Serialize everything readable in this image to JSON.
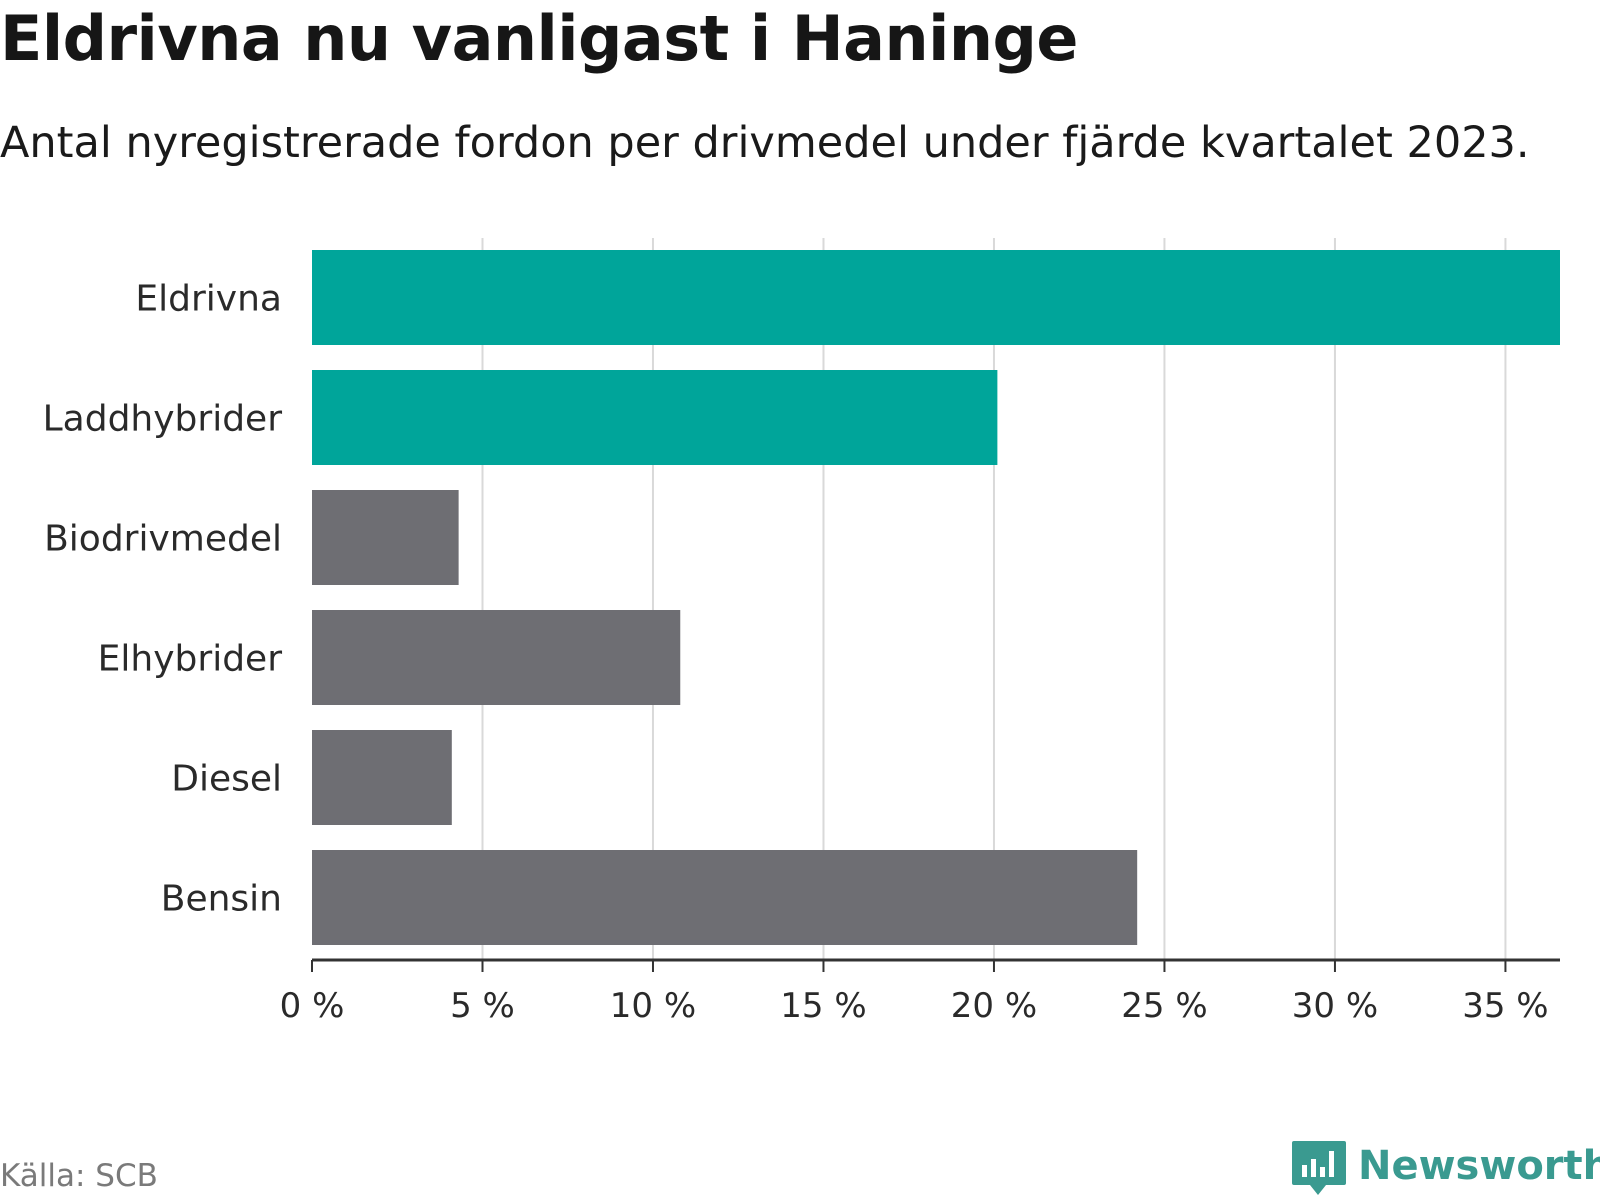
{
  "title": "Eldrivna nu vanligast i Haninge",
  "subtitle": "Antal nyregistrerade fordon per drivmedel under fjärde kvartalet 2023.",
  "source": "Källa: SCB",
  "brand": {
    "name": "Newsworthy",
    "icon": "newsworthy-logo-icon",
    "color": "#3a9a90"
  },
  "colors": {
    "highlight": "#00a59a",
    "default": "#6e6e73",
    "grid": "#d9d9d9",
    "axis": "#333333"
  },
  "chart_data": {
    "type": "bar",
    "orientation": "horizontal",
    "categories": [
      "Eldrivna",
      "Laddhybrider",
      "Biodrivmedel",
      "Elhybrider",
      "Diesel",
      "Bensin"
    ],
    "values": [
      36.6,
      20.1,
      4.3,
      10.8,
      4.1,
      24.2
    ],
    "highlighted": [
      true,
      true,
      false,
      false,
      false,
      false
    ],
    "unit": "%",
    "xlim": [
      0,
      36.6
    ],
    "xticks": [
      0,
      5,
      10,
      15,
      20,
      25,
      30,
      35
    ],
    "xtick_labels": [
      "0 %",
      "5 %",
      "10 %",
      "15 %",
      "20 %",
      "25 %",
      "30 %",
      "35 %"
    ],
    "xlabel": "",
    "ylabel": "",
    "grid": true
  }
}
